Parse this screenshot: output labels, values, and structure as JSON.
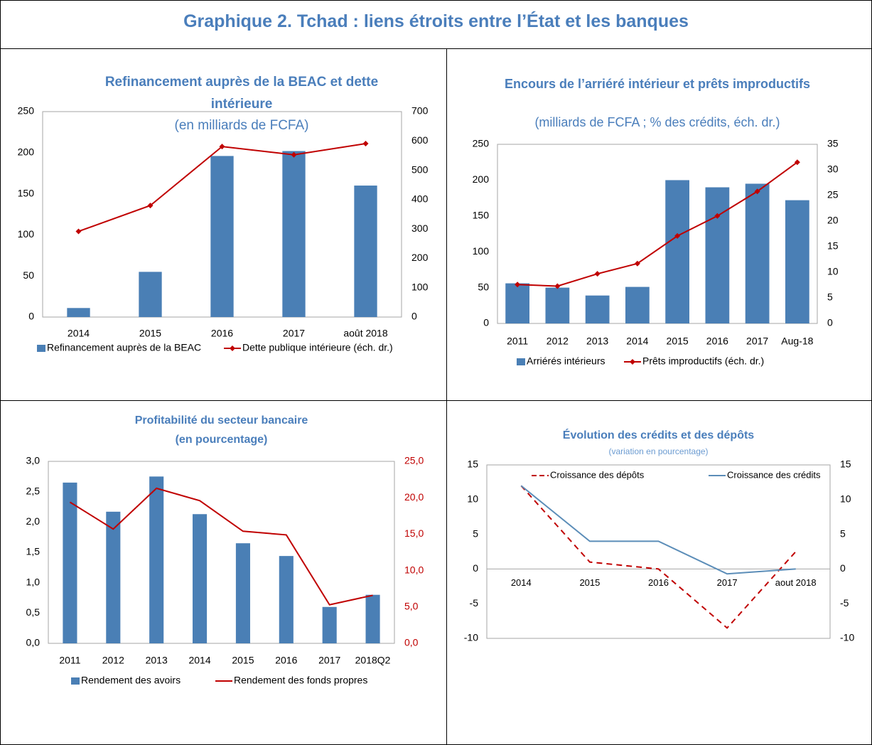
{
  "title": "Graphique 2. Tchad : liens étroits entre l’État et les banques",
  "chart_data": [
    {
      "type": "bar",
      "title": "Refinancement auprès de la BEAC et dette intérieure",
      "subtitle": "(en milliards de FCFA)",
      "categories": [
        "2014",
        "2015",
        "2016",
        "2017",
        "août 2018"
      ],
      "series": [
        {
          "name": "Refinancement auprès de la BEAC",
          "type": "bar",
          "color": "#4a7fb5",
          "values": [
            11,
            55,
            196,
            202,
            160
          ]
        },
        {
          "name": "Dette publique intérieure (éch. dr.)",
          "type": "line",
          "axis": "y2",
          "marker": "diamond",
          "color": "#c00000",
          "values": [
            292,
            380,
            581,
            553,
            591
          ]
        }
      ],
      "ylim": [
        0,
        250
      ],
      "yticks": [
        0,
        50,
        100,
        150,
        200,
        250
      ],
      "y2lim": [
        0,
        700
      ],
      "y2ticks": [
        0,
        100,
        200,
        300,
        400,
        500,
        600,
        700
      ]
    },
    {
      "type": "bar",
      "title": "Encours de l’arriéré intérieur et prêts improductifs",
      "subtitle": "(milliards de FCFA ; % des crédits, éch. dr.)",
      "categories": [
        "2011",
        "2012",
        "2013",
        "2014",
        "2015",
        "2016",
        "2017",
        "Aug-18"
      ],
      "series": [
        {
          "name": "Arriérés intérieurs",
          "type": "bar",
          "color": "#4a7fb5",
          "values": [
            56,
            50,
            39,
            51,
            200,
            190,
            195,
            172
          ]
        },
        {
          "name": "Prêts improductifs (éch. dr.)",
          "type": "line",
          "axis": "y2",
          "marker": "diamond",
          "color": "#c00000",
          "values": [
            7.6,
            7.3,
            9.7,
            11.7,
            17.1,
            21.0,
            25.8,
            31.5
          ]
        }
      ],
      "ylim": [
        0,
        250
      ],
      "yticks": [
        0,
        50,
        100,
        150,
        200,
        250
      ],
      "y2lim": [
        0,
        35
      ],
      "y2ticks": [
        0,
        5,
        10,
        15,
        20,
        25,
        30,
        35
      ]
    },
    {
      "type": "bar",
      "title": "Profitabilité du secteur bancaire",
      "subtitle": "(en pourcentage)",
      "categories": [
        "2011",
        "2012",
        "2013",
        "2014",
        "2015",
        "2016",
        "2017",
        "2018Q2"
      ],
      "series": [
        {
          "name": "Rendement des avoirs",
          "type": "bar",
          "color": "#4a7fb5",
          "values": [
            2.65,
            2.17,
            2.75,
            2.13,
            1.65,
            1.44,
            0.6,
            0.8
          ]
        },
        {
          "name": "Rendement des fonds propres",
          "type": "line",
          "axis": "y2",
          "color": "#c00000",
          "values": [
            19.4,
            15.7,
            21.3,
            19.6,
            15.4,
            14.9,
            5.3,
            6.6
          ]
        }
      ],
      "ylim": [
        0,
        3
      ],
      "yticks": [
        {
          "value": 0,
          "label": "0,0"
        },
        {
          "value": 0.5,
          "label": "0,5"
        },
        {
          "value": 1,
          "label": "1,0"
        },
        {
          "value": 1.5,
          "label": "1,5"
        },
        {
          "value": 2,
          "label": "2,0"
        },
        {
          "value": 2.5,
          "label": "2,5"
        },
        {
          "value": 3,
          "label": "3,0"
        }
      ],
      "y2lim": [
        0,
        25
      ],
      "y2ticks": [
        {
          "value": 0,
          "label": "0,0"
        },
        {
          "value": 5,
          "label": "5,0"
        },
        {
          "value": 10,
          "label": "10,0"
        },
        {
          "value": 15,
          "label": "15,0"
        },
        {
          "value": 20,
          "label": "20,0"
        },
        {
          "value": 25,
          "label": "25,0"
        }
      ],
      "y2color": "#c00000"
    },
    {
      "type": "line",
      "title": "Évolution des crédits et des dépôts",
      "subtitle": "(variation en pourcentage)",
      "categories": [
        "2014",
        "2015",
        "2016",
        "2017",
        "aout 2018"
      ],
      "series": [
        {
          "name": "Croissance des dépôts",
          "type": "line",
          "dash": true,
          "color": "#c00000",
          "values": [
            12,
            1,
            0,
            -8.5,
            2.5
          ]
        },
        {
          "name": "Croissance des crédits",
          "type": "line",
          "color": "#5b8db8",
          "values": [
            12,
            4,
            4,
            -0.7,
            0
          ]
        }
      ],
      "ylim": [
        -10,
        15
      ],
      "yticks": [
        -10,
        -5,
        0,
        5,
        10,
        15
      ],
      "y2lim": [
        -10,
        15
      ],
      "y2ticks": [
        -10,
        -5,
        0,
        5,
        10,
        15
      ]
    }
  ]
}
